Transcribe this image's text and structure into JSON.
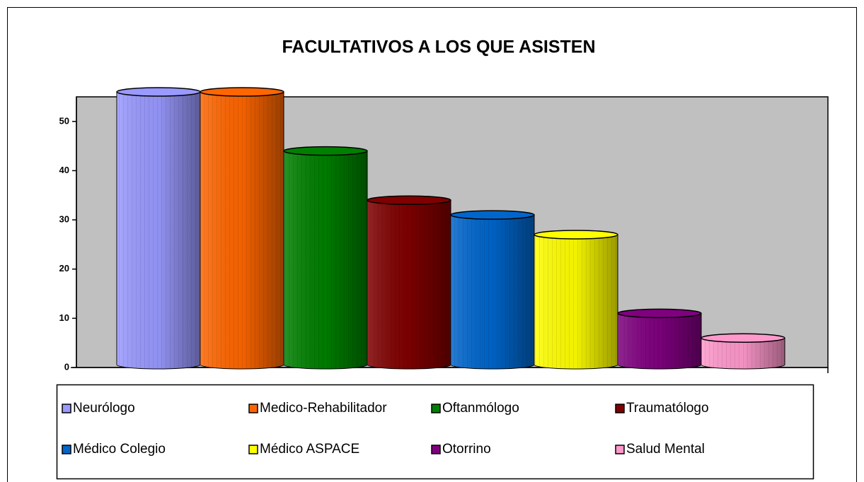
{
  "chart_data": {
    "type": "bar",
    "title": "FACULTATIVOS A LOS QUE ASISTEN",
    "categories": [
      "Neurólogo",
      "Medico-Rehabilitador",
      "Oftanmólogo",
      "Traumatólogo",
      "Médico Colegio",
      "Médico ASPACE",
      "Otorrino",
      "Salud Mental"
    ],
    "values": [
      56,
      56,
      44,
      34,
      31,
      27,
      11,
      6
    ],
    "colors": [
      "#9999ff",
      "#ff6600",
      "#008000",
      "#800000",
      "#0066cc",
      "#ffff00",
      "#800080",
      "#ff99cc"
    ],
    "ylim": [
      0,
      55
    ],
    "yticks": [
      0,
      10,
      20,
      30,
      40,
      50
    ],
    "grid": false,
    "legend": "bottom"
  }
}
